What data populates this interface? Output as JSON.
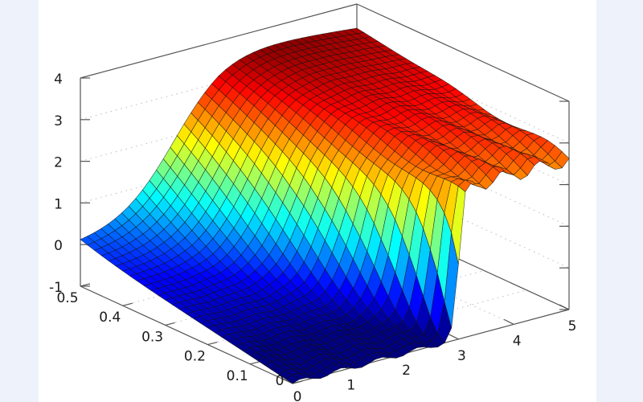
{
  "chart_data": {
    "type": "surface3d",
    "title": "",
    "xlabel": "",
    "ylabel": "",
    "zlabel": "",
    "x_ticks": [
      "0",
      "1",
      "2",
      "3",
      "4",
      "5"
    ],
    "y_ticks": [
      "0",
      "0.1",
      "0.2",
      "0.3",
      "0.4",
      "0.5"
    ],
    "z_ticks": [
      "-1",
      "0",
      "1",
      "2",
      "3",
      "4"
    ],
    "xlim": [
      0,
      5
    ],
    "ylim": [
      0,
      0.5
    ],
    "zlim": [
      -1,
      4
    ],
    "grid": true,
    "colormap": "jet",
    "description": "Sigmoid-like surface: z≈0 at x=0, rising to ≈3.8 near x≈2.5 at y=0.5; along y→0 the rise becomes a sharp step at x≈3 (from ≈-0.7 to ≈2.6) with small ripples on the red plateau",
    "grid_resolution": {
      "nx": 40,
      "ny": 30
    },
    "sample_profiles": [
      {
        "y": 0.5,
        "x": [
          0,
          1,
          2,
          2.5,
          3,
          4,
          5
        ],
        "z": [
          0.0,
          0.9,
          3.0,
          3.8,
          3.8,
          3.6,
          3.4
        ]
      },
      {
        "y": 0.25,
        "x": [
          0,
          1,
          2,
          2.5,
          3,
          4,
          5
        ],
        "z": [
          -0.4,
          -0.2,
          1.2,
          2.3,
          3.2,
          3.0,
          2.9
        ]
      },
      {
        "y": 0.0,
        "x": [
          0,
          1,
          2,
          2.9,
          3.0,
          4,
          5
        ],
        "z": [
          -1.0,
          -0.9,
          -0.8,
          -0.7,
          2.5,
          2.6,
          2.6
        ]
      }
    ]
  },
  "colors": {
    "page_background": "#edf2fb",
    "plot_background": "#ffffff",
    "axis": "#555555",
    "grid": "#bbbbbb",
    "mesh_line": "#111111"
  }
}
